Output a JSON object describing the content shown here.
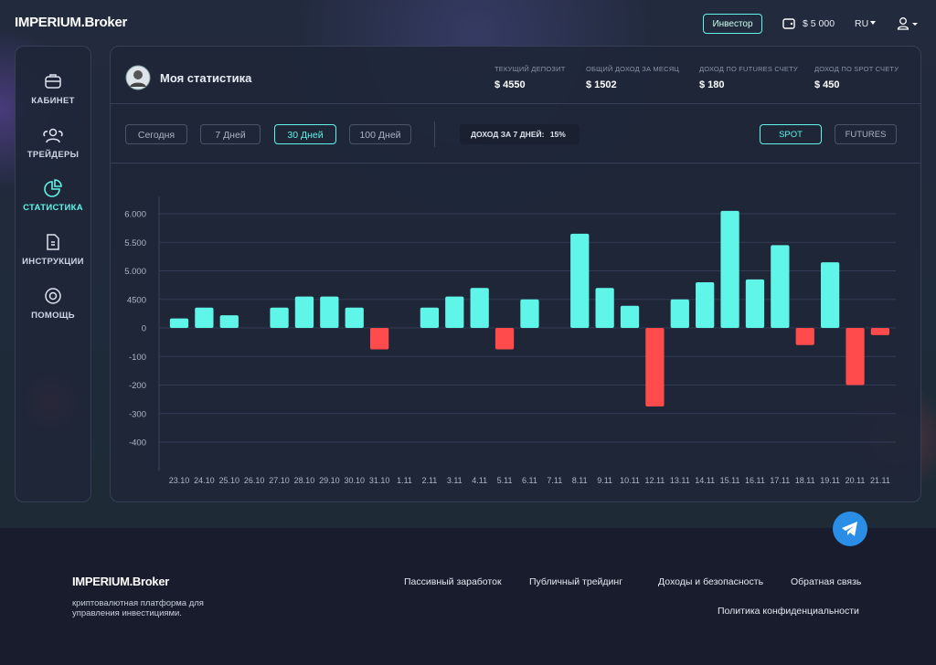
{
  "header": {
    "logo": "IMPERIUM.Broker",
    "role_button": "Инвестор",
    "balance": "$ 5 000",
    "language": "RU"
  },
  "sidebar": {
    "items": [
      "КАБИНЕТ",
      "ТРЕЙДЕРЫ",
      "СТАТИСТИКА",
      "ИНСТРУКЦИИ",
      "ПОМОЩЬ"
    ]
  },
  "stats": {
    "title": "Моя статистика",
    "cards": [
      {
        "label": "ТЕКУЩИЙ ДЕПОЗИТ",
        "value": "$ 4550"
      },
      {
        "label": "ОБЩИЙ ДОХОД ЗА МЕСЯЦ",
        "value": "$ 1502"
      },
      {
        "label": "ДОХОД ПО FUTURES СЧЕТУ",
        "value": "$ 180"
      },
      {
        "label": "ДОХОД ПО SPOT СЧЕТУ",
        "value": "$ 450"
      }
    ]
  },
  "filters": {
    "periods": [
      "Сегодня",
      "7 Дней",
      "30 Дней",
      "100 Дней"
    ],
    "income_label": "ДОХОД ЗА 7 ДНЕЙ:",
    "income_value": "15%",
    "markets": [
      "SPOT",
      "FUTURES"
    ]
  },
  "chart_data": {
    "type": "bar",
    "categories": [
      "23.10",
      "24.10",
      "25.10",
      "26.10",
      "27.10",
      "28.10",
      "29.10",
      "30.10",
      "31.10",
      "1.11",
      "2.11",
      "3.11",
      "4.11",
      "5.11",
      "6.11",
      "7.11",
      "8.11",
      "9.11",
      "10.11",
      "12.11",
      "13.11",
      "14.11",
      "15.11",
      "16.11",
      "17.11",
      "18.11",
      "19.11",
      "20.11",
      "21.11"
    ],
    "values": [
      1500,
      3200,
      2000,
      null,
      3200,
      4550,
      4550,
      3200,
      -75,
      null,
      3200,
      4550,
      4700,
      -75,
      4500,
      null,
      5650,
      4700,
      3500,
      -275,
      4500,
      4800,
      6050,
      4850,
      5450,
      -60,
      5150,
      -200,
      -25
    ],
    "color": "#5ff5e8",
    "negative_color": "#ff4b4b",
    "ylim": [
      -500,
      6300
    ],
    "yticks": [
      {
        "value": 6000,
        "label": "6.000"
      },
      {
        "value": 5500,
        "label": "5.500"
      },
      {
        "value": 5000,
        "label": "5.000"
      },
      4500,
      0,
      -100,
      -200,
      -300,
      -400
    ],
    "grid": true
  },
  "footer": {
    "logo": "IMPERIUM.Broker",
    "description": "криптовалютная платформа для управления инвестициями.",
    "links": [
      "Пассивный заработок",
      "Публичный трейдинг",
      "Доходы и безопасность",
      "Обратная связь",
      "Политика конфиденциальности"
    ]
  }
}
